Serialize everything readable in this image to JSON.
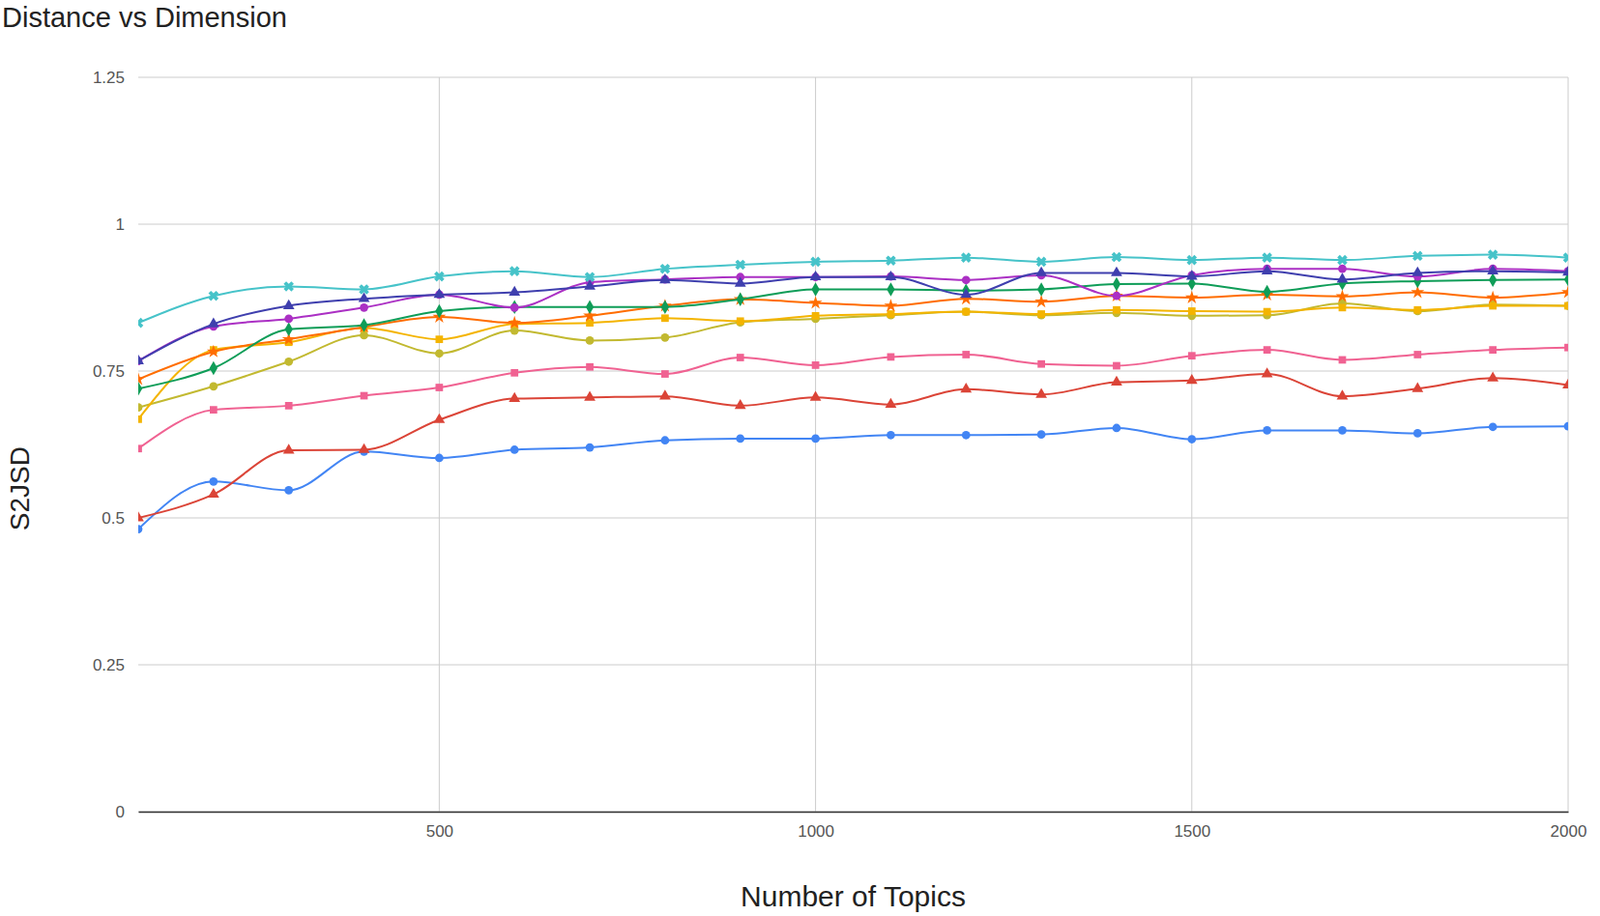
{
  "chart_data": {
    "type": "line",
    "title": "Distance vs Dimension",
    "x_label": "Number of Topics",
    "y_label": "S2JSD",
    "x": [
      100,
      200,
      300,
      400,
      500,
      600,
      700,
      800,
      900,
      1000,
      1100,
      1200,
      1300,
      1400,
      1500,
      1600,
      1700,
      1800,
      1900,
      2000
    ],
    "xlim": [
      100,
      2000
    ],
    "xticks": [
      500,
      1000,
      1500,
      2000
    ],
    "ylim": [
      0,
      1.25
    ],
    "yticks": [
      0,
      0.25,
      0.5,
      0.75,
      1,
      1.25
    ],
    "grid": true,
    "series": [
      {
        "color": "#4285f4",
        "marker": "circle",
        "values": [
          0.481,
          0.562,
          0.547,
          0.613,
          0.602,
          0.616,
          0.62,
          0.632,
          0.635,
          0.635,
          0.641,
          0.641,
          0.642,
          0.653,
          0.634,
          0.649,
          0.649,
          0.644,
          0.655,
          0.656
        ]
      },
      {
        "color": "#db4437",
        "marker": "triangle",
        "values": [
          0.5,
          0.54,
          0.615,
          0.616,
          0.667,
          0.703,
          0.705,
          0.707,
          0.691,
          0.705,
          0.693,
          0.719,
          0.71,
          0.731,
          0.734,
          0.745,
          0.707,
          0.72,
          0.738,
          0.726
        ]
      },
      {
        "color": "#f06292",
        "marker": "square",
        "values": [
          0.618,
          0.684,
          0.691,
          0.708,
          0.722,
          0.747,
          0.757,
          0.745,
          0.773,
          0.76,
          0.774,
          0.778,
          0.762,
          0.759,
          0.776,
          0.786,
          0.769,
          0.778,
          0.786,
          0.79
        ]
      },
      {
        "color": "#c2b930",
        "marker": "circle",
        "values": [
          0.688,
          0.724,
          0.766,
          0.811,
          0.78,
          0.819,
          0.802,
          0.807,
          0.833,
          0.839,
          0.845,
          0.851,
          0.845,
          0.849,
          0.844,
          0.845,
          0.865,
          0.852,
          0.863,
          0.861
        ]
      },
      {
        "color": "#f4b400",
        "marker": "square",
        "values": [
          0.668,
          0.786,
          0.799,
          0.823,
          0.804,
          0.83,
          0.832,
          0.84,
          0.835,
          0.844,
          0.847,
          0.851,
          0.847,
          0.854,
          0.852,
          0.851,
          0.858,
          0.854,
          0.861,
          0.861
        ]
      },
      {
        "color": "#ff6d01",
        "marker": "star",
        "values": [
          0.736,
          0.783,
          0.804,
          0.825,
          0.842,
          0.832,
          0.844,
          0.861,
          0.872,
          0.866,
          0.861,
          0.873,
          0.868,
          0.878,
          0.875,
          0.88,
          0.877,
          0.884,
          0.875,
          0.884
        ]
      },
      {
        "color": "#0f9d58",
        "marker": "diamond",
        "values": [
          0.72,
          0.755,
          0.821,
          0.828,
          0.852,
          0.859,
          0.859,
          0.859,
          0.872,
          0.889,
          0.889,
          0.887,
          0.889,
          0.898,
          0.899,
          0.885,
          0.899,
          0.903,
          0.905,
          0.906
        ]
      },
      {
        "color": "#ab30c4",
        "marker": "circle",
        "values": [
          0.767,
          0.826,
          0.839,
          0.858,
          0.88,
          0.858,
          0.901,
          0.906,
          0.91,
          0.91,
          0.911,
          0.905,
          0.913,
          0.878,
          0.913,
          0.924,
          0.924,
          0.911,
          0.924,
          0.92
        ]
      },
      {
        "color": "#3f3fae",
        "marker": "triangle",
        "values": [
          0.767,
          0.83,
          0.861,
          0.873,
          0.88,
          0.884,
          0.894,
          0.905,
          0.899,
          0.91,
          0.91,
          0.88,
          0.917,
          0.917,
          0.911,
          0.92,
          0.906,
          0.917,
          0.92,
          0.918
        ]
      },
      {
        "color": "#46c3c9",
        "marker": "x",
        "values": [
          0.832,
          0.878,
          0.894,
          0.889,
          0.911,
          0.92,
          0.91,
          0.924,
          0.931,
          0.936,
          0.938,
          0.943,
          0.936,
          0.944,
          0.939,
          0.943,
          0.939,
          0.946,
          0.948,
          0.943
        ]
      }
    ]
  }
}
